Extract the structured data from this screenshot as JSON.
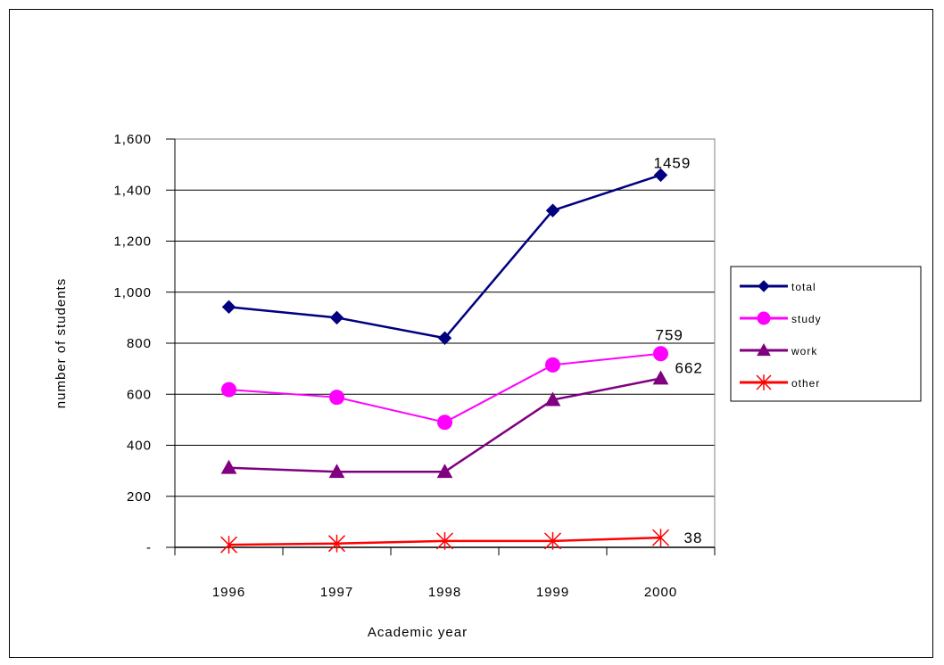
{
  "chart_data": {
    "type": "line",
    "title": "",
    "xlabel": "Academic year",
    "ylabel": "number of students",
    "categories": [
      "1996",
      "1997",
      "1998",
      "1999",
      "2000"
    ],
    "ylim": [
      0,
      1600
    ],
    "yticks": [
      {
        "value": 0,
        "label": "-"
      },
      {
        "value": 200,
        "label": "200"
      },
      {
        "value": 400,
        "label": "400"
      },
      {
        "value": 600,
        "label": "600"
      },
      {
        "value": 800,
        "label": "800"
      },
      {
        "value": 1000,
        "label": "1,000"
      },
      {
        "value": 1200,
        "label": "1,200"
      },
      {
        "value": 1400,
        "label": "1,400"
      },
      {
        "value": 1600,
        "label": "1,600"
      }
    ],
    "grid": "horizontal",
    "legend_position": "right",
    "series": [
      {
        "name": "total",
        "values": [
          942,
          900,
          820,
          1320,
          1459
        ],
        "color": "#000080",
        "marker": "diamond",
        "label_last": "1459"
      },
      {
        "name": "study",
        "values": [
          618,
          588,
          490,
          715,
          759
        ],
        "color": "#ff00ff",
        "marker": "circle",
        "label_last": "759"
      },
      {
        "name": "work",
        "values": [
          312,
          296,
          296,
          578,
          662
        ],
        "color": "#800080",
        "marker": "triangle",
        "label_last": "662"
      },
      {
        "name": "other",
        "values": [
          10,
          15,
          25,
          25,
          38
        ],
        "color": "#ff0000",
        "marker": "asterisk",
        "label_last": "38"
      }
    ]
  }
}
